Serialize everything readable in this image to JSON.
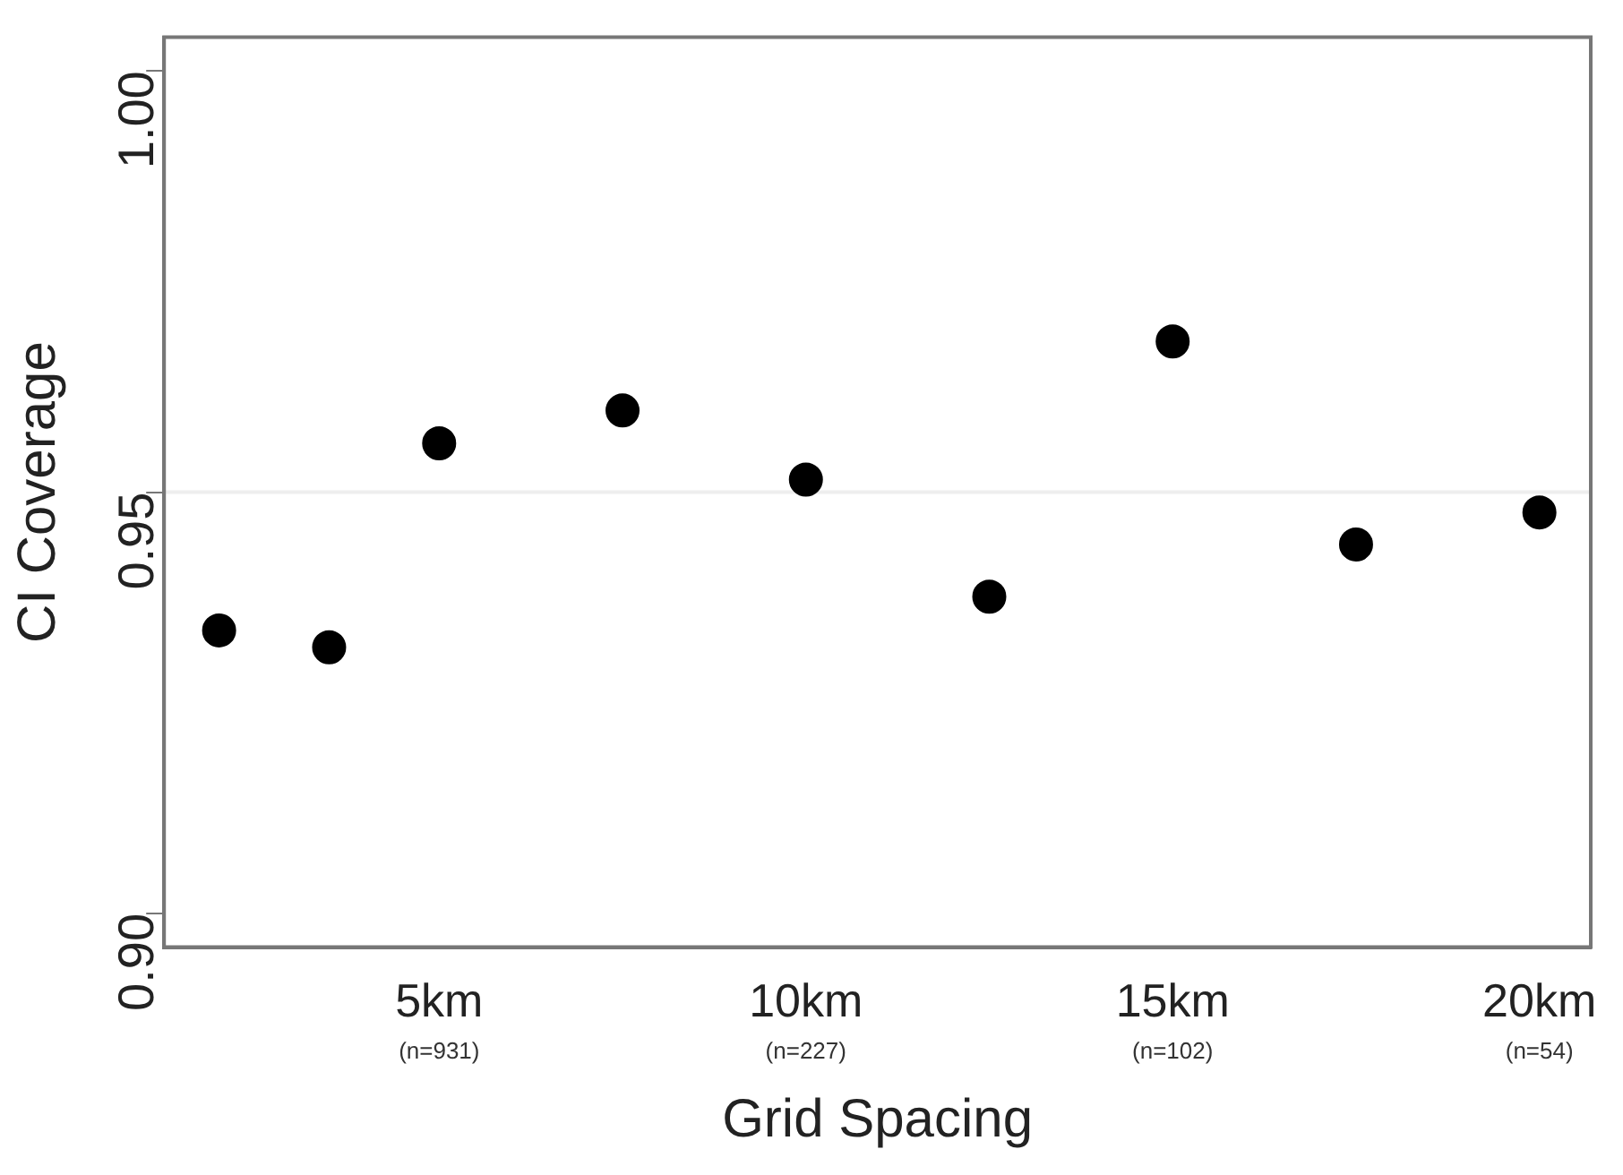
{
  "chart_data": {
    "type": "scatter",
    "xlabel": "Grid Spacing",
    "ylabel": "CI Coverage",
    "x": [
      2,
      3.5,
      5,
      7.5,
      10,
      12.5,
      15,
      17.5,
      20
    ],
    "series": [
      {
        "color": "#000000",
        "values": [
          0.9336,
          0.9316,
          0.9558,
          0.9597,
          0.9515,
          0.9376,
          0.9679,
          0.9438,
          0.9476
        ]
      }
    ],
    "xlim": [
      1.25,
      20.7
    ],
    "ylim": [
      0.896,
      1.004
    ],
    "xticks": [
      {
        "value": 5,
        "label": "5km"
      },
      {
        "value": 10,
        "label": "10km"
      },
      {
        "value": 15,
        "label": "15km"
      },
      {
        "value": 20,
        "label": "20km"
      }
    ],
    "annotations": [
      "(n=931)",
      "(n=227)",
      "(n=102)",
      "(n=54)"
    ],
    "yticks": [
      {
        "value": 0.9,
        "label": "0.90"
      },
      {
        "value": 0.95,
        "label": "0.95"
      },
      {
        "value": 1.0,
        "label": "1.00"
      }
    ],
    "ref_lines": [
      {
        "axis": "y",
        "value": 0.95,
        "color": "#eeeeee"
      }
    ],
    "marker": "circle",
    "grid": false,
    "legend": false
  }
}
